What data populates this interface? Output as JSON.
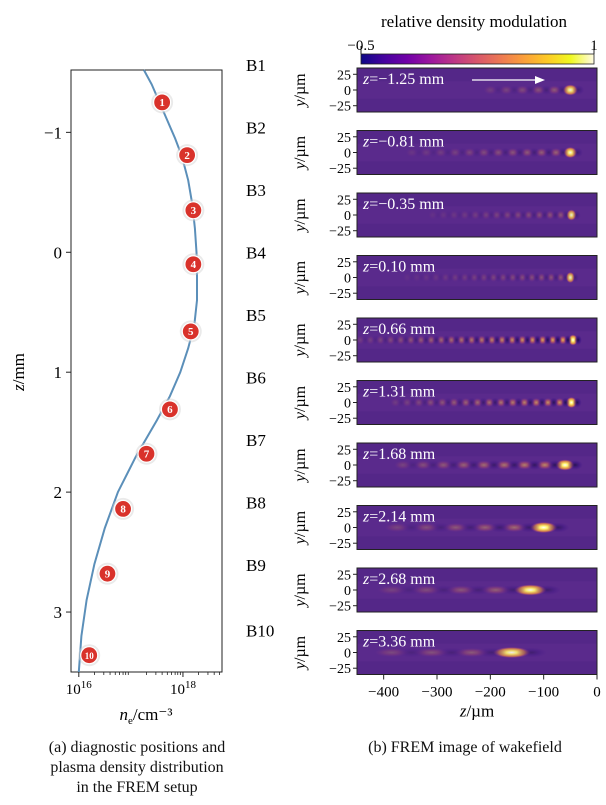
{
  "chart_data": [
    {
      "type": "line",
      "xlabel": "ne/cm⁻³",
      "ylabel": "z/mm",
      "x_ticks": [
        "1016",
        "1018"
      ],
      "y_ticks": [
        "−1",
        "0",
        "1",
        "2",
        "3"
      ],
      "x_scale": "log",
      "xlim_log10": [
        15.85,
        18.75
      ],
      "ylim": [
        -1.52,
        3.5
      ],
      "y_inverted": true,
      "grid": false,
      "series": [
        {
          "log10_ne": [
            17.25,
            17.4,
            17.55,
            17.7,
            17.85,
            17.98,
            18.1,
            18.18,
            18.23,
            18.26,
            18.27,
            18.27,
            18.22,
            18.1,
            17.95,
            17.75,
            17.5,
            17.1,
            16.75,
            16.5,
            16.3,
            16.15,
            16.05,
            16.0
          ],
          "z_mm": [
            -1.52,
            -1.4,
            -1.25,
            -1.1,
            -0.95,
            -0.8,
            -0.6,
            -0.4,
            -0.2,
            0.0,
            0.2,
            0.4,
            0.6,
            0.8,
            1.0,
            1.2,
            1.4,
            1.7,
            2.0,
            2.3,
            2.6,
            2.9,
            3.2,
            3.5
          ]
        }
      ],
      "markers": [
        {
          "label": "1",
          "log10_ne": 17.6,
          "z_mm": -1.25
        },
        {
          "label": "2",
          "log10_ne": 18.08,
          "z_mm": -0.81
        },
        {
          "label": "3",
          "log10_ne": 18.2,
          "z_mm": -0.35
        },
        {
          "label": "4",
          "log10_ne": 18.2,
          "z_mm": 0.1
        },
        {
          "label": "5",
          "log10_ne": 18.15,
          "z_mm": 0.66
        },
        {
          "label": "6",
          "log10_ne": 17.75,
          "z_mm": 1.31
        },
        {
          "label": "7",
          "log10_ne": 17.3,
          "z_mm": 1.68
        },
        {
          "label": "8",
          "log10_ne": 16.85,
          "z_mm": 2.14
        },
        {
          "label": "9",
          "log10_ne": 16.55,
          "z_mm": 2.68
        },
        {
          "label": "10",
          "log10_ne": 16.2,
          "z_mm": 3.36
        }
      ],
      "caption": [
        "(a) diagnostic positions and",
        "plasma density distribution",
        "in the FREM setup"
      ]
    },
    {
      "type": "heatmap",
      "colorbar": {
        "label": "relative density modulation",
        "min_label": "−0.5",
        "max_label": "1",
        "range": [
          -0.5,
          1
        ],
        "colors": [
          "#0d0887",
          "#46039f",
          "#7201a8",
          "#9c179e",
          "#bd3786",
          "#d8576b",
          "#ed7953",
          "#fb9f3a",
          "#fdca26",
          "#f0f921",
          "#fffbe6"
        ]
      },
      "xlabel": "z/µm",
      "ylabel": "y/µm",
      "x_ticks": [
        "−400",
        "−300",
        "−200",
        "−100",
        "0"
      ],
      "y_ticks": [
        "25",
        "0",
        "−25"
      ],
      "xlim": [
        -450,
        0
      ],
      "ylim": [
        -35,
        35
      ],
      "background": "#5a2a8c",
      "panels": [
        {
          "id": "B1",
          "z_label": "z=−1.25 mm",
          "spacing_um": 30,
          "n": 6,
          "x_end_um": -50,
          "amp": 0.4,
          "arrow": true
        },
        {
          "id": "B2",
          "z_label": "z=−0.81 mm",
          "spacing_um": 27,
          "n": 12,
          "x_end_um": -50,
          "amp": 0.45,
          "arrow": false
        },
        {
          "id": "B3",
          "z_label": "z=−0.35 mm",
          "spacing_um": 20,
          "n": 14,
          "x_end_um": -48,
          "amp": 0.35,
          "arrow": false
        },
        {
          "id": "B4",
          "z_label": "z=0.10 mm",
          "spacing_um": 18,
          "n": 18,
          "x_end_um": -50,
          "amp": 0.35,
          "arrow": false
        },
        {
          "id": "B5",
          "z_label": "z=0.66 mm",
          "spacing_um": 19,
          "n": 22,
          "x_end_um": -45,
          "amp": 1.0,
          "arrow": false
        },
        {
          "id": "B6",
          "z_label": "z=1.31 mm",
          "spacing_um": 22,
          "n": 16,
          "x_end_um": -48,
          "amp": 0.85,
          "arrow": false
        },
        {
          "id": "B7",
          "z_label": "z=1.68 mm",
          "spacing_um": 38,
          "n": 9,
          "x_end_um": -60,
          "amp": 0.75,
          "arrow": false
        },
        {
          "id": "B8",
          "z_label": "z=2.14 mm",
          "spacing_um": 55,
          "n": 6,
          "x_end_um": -100,
          "amp": 0.55,
          "arrow": false
        },
        {
          "id": "B9",
          "z_label": "z=2.68 mm",
          "spacing_um": 65,
          "n": 5,
          "x_end_um": -125,
          "amp": 0.45,
          "arrow": false
        },
        {
          "id": "B10",
          "z_label": "z=3.36 mm",
          "spacing_um": 75,
          "n": 5,
          "x_end_um": -160,
          "amp": 0.4,
          "arrow": false
        }
      ],
      "caption": [
        "(b) FREM image of wakefield"
      ]
    }
  ]
}
